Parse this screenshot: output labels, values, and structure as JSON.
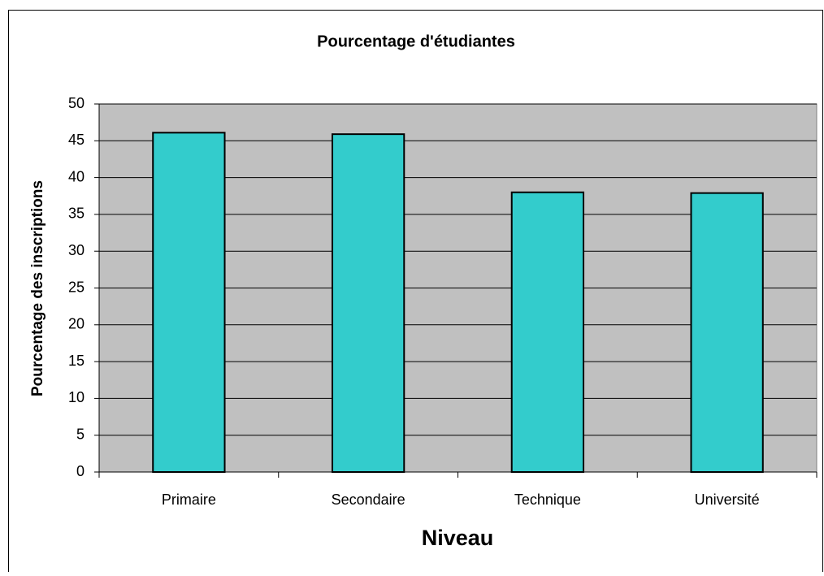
{
  "chart_data": {
    "type": "bar",
    "title": "Pourcentage d'étudiantes",
    "x_label": "Niveau",
    "y_label": "Pourcentage des inscriptions",
    "categories": [
      "Primaire",
      "Secondaire",
      "Technique",
      "Université"
    ],
    "values": [
      46.1,
      45.9,
      38.0,
      37.9
    ],
    "color": "#33cccc",
    "ylim": [
      0,
      50
    ],
    "yticks": [
      0,
      5,
      10,
      15,
      20,
      25,
      30,
      35,
      40,
      45,
      50
    ],
    "grid": true
  }
}
